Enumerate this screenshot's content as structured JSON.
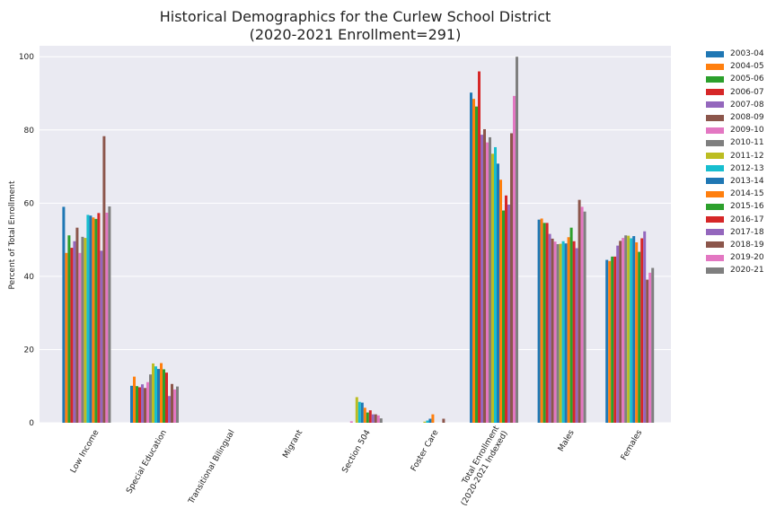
{
  "chart_data": {
    "type": "bar",
    "title": "Historical Demographics for the Curlew School District",
    "subtitle": "(2020-2021 Enrollment=291)",
    "ylabel": "Percent of Total Enrollment",
    "xlabel": "",
    "ylim": [
      0,
      103
    ],
    "yticks": [
      0,
      20,
      40,
      60,
      80,
      100
    ],
    "grid": true,
    "legend_position": "outside-right",
    "categories": [
      "Low Income",
      "Special Education",
      "Transitional Bilingual",
      "Migrant",
      "Section 504",
      "Foster Care",
      "Total Enrollment\n(2020-2021 Indexed)",
      "Males",
      "Females"
    ],
    "colors": [
      "#1f77b4",
      "#ff7f0e",
      "#2ca02c",
      "#d62728",
      "#9467bd",
      "#8c564b",
      "#e377c2",
      "#7f7f7f",
      "#bcbd22",
      "#17becf",
      "#1f77b4",
      "#ff7f0e",
      "#2ca02c",
      "#d62728",
      "#9467bd",
      "#8c564b",
      "#e377c2",
      "#7f7f7f"
    ],
    "series": [
      {
        "name": "2003-04",
        "values": [
          59.0,
          10.1,
          0,
          0,
          0,
          0,
          90.2,
          55.5,
          44.5
        ]
      },
      {
        "name": "2004-05",
        "values": [
          46.4,
          12.6,
          0,
          0,
          0,
          0,
          88.5,
          55.8,
          44.2
        ]
      },
      {
        "name": "2005-06",
        "values": [
          51.2,
          10.0,
          0,
          0,
          0,
          0,
          86.4,
          54.6,
          45.4
        ]
      },
      {
        "name": "2006-07",
        "values": [
          47.8,
          9.7,
          0,
          0,
          0,
          0,
          96.0,
          54.6,
          45.4
        ]
      },
      {
        "name": "2007-08",
        "values": [
          49.6,
          10.5,
          0,
          0,
          0,
          0,
          78.7,
          51.6,
          48.4
        ]
      },
      {
        "name": "2008-09",
        "values": [
          53.3,
          9.5,
          0,
          0,
          0,
          0,
          80.2,
          50.3,
          49.7
        ]
      },
      {
        "name": "2009-10",
        "values": [
          46.4,
          11.1,
          0,
          0,
          0.4,
          0,
          76.6,
          49.5,
          50.5
        ]
      },
      {
        "name": "2010-11",
        "values": [
          50.8,
          13.2,
          0,
          0,
          0,
          0,
          78.0,
          48.8,
          51.2
        ]
      },
      {
        "name": "2011-12",
        "values": [
          50.5,
          16.2,
          0,
          0,
          7.0,
          0.3,
          73.5,
          48.9,
          51.1
        ]
      },
      {
        "name": "2012-13",
        "values": [
          56.8,
          15.4,
          0,
          0,
          5.7,
          0.6,
          75.3,
          49.6,
          50.4
        ]
      },
      {
        "name": "2013-14",
        "values": [
          56.6,
          14.7,
          0,
          0,
          5.5,
          1.1,
          70.8,
          49.0,
          51.0
        ]
      },
      {
        "name": "2014-15",
        "values": [
          56.1,
          16.3,
          0,
          0,
          4.1,
          2.3,
          66.4,
          50.7,
          49.3
        ]
      },
      {
        "name": "2015-16",
        "values": [
          55.7,
          14.6,
          0,
          0,
          2.8,
          0,
          58.0,
          53.3,
          46.7
        ]
      },
      {
        "name": "2016-17",
        "values": [
          57.3,
          13.7,
          0,
          0,
          3.4,
          0,
          62.1,
          49.6,
          50.4
        ]
      },
      {
        "name": "2017-18",
        "values": [
          47.0,
          7.3,
          0,
          0,
          2.3,
          0,
          59.6,
          47.7,
          52.3
        ]
      },
      {
        "name": "2018-19",
        "values": [
          78.3,
          10.6,
          0,
          0,
          2.3,
          1.1,
          79.1,
          60.9,
          39.1
        ]
      },
      {
        "name": "2019-20",
        "values": [
          57.4,
          9.1,
          0,
          0,
          2.0,
          0,
          89.3,
          59.0,
          41.0
        ]
      },
      {
        "name": "2020-21",
        "values": [
          59.1,
          9.9,
          0,
          0,
          1.2,
          0,
          100.0,
          57.7,
          42.3
        ]
      }
    ]
  }
}
